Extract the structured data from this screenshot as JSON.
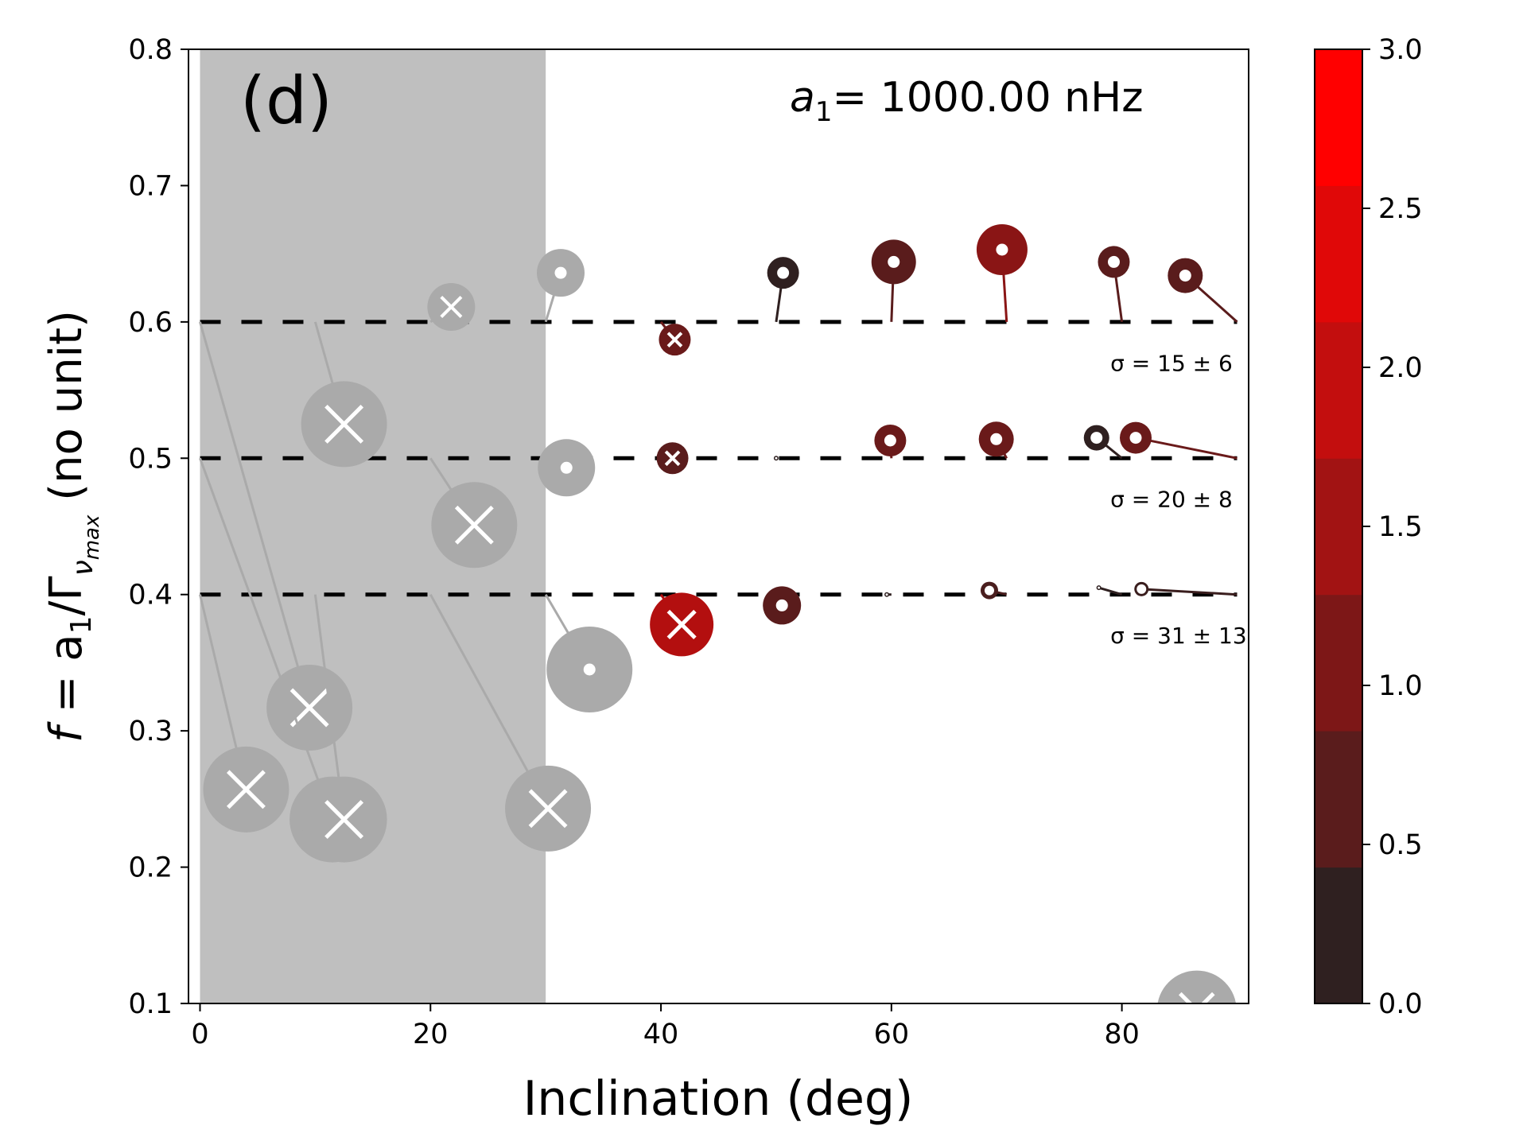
{
  "chart_data": {
    "type": "scatter",
    "panel_label": "(d)",
    "annotation": {
      "prefix": "a",
      "sub": "1",
      "text": "= 1000.00 nHz"
    },
    "xlabel": "Inclination (deg)",
    "ylabel": {
      "a": "f",
      "b": " = a",
      "c": "1",
      "d": "/Γ",
      "e": "ν",
      "f": "max",
      "g": " (no unit)"
    },
    "xlim": [
      -1,
      91
    ],
    "ylim": [
      0.1,
      0.8
    ],
    "xticks": [
      "0",
      "20",
      "40",
      "60",
      "80"
    ],
    "yticks": [
      "0.1",
      "0.2",
      "0.3",
      "0.4",
      "0.5",
      "0.6",
      "0.7",
      "0.8"
    ],
    "shaded_region": {
      "x": [
        0,
        30
      ],
      "color": "#bfbfbf"
    },
    "reference_lines": [
      {
        "y": 0.6,
        "label": "σ = 15 ± 6"
      },
      {
        "y": 0.5,
        "label": "σ = 20 ± 8"
      },
      {
        "y": 0.4,
        "label": "σ = 31 ± 13"
      }
    ],
    "colorbar": {
      "ticks": [
        "0.0",
        "0.5",
        "1.0",
        "1.5",
        "2.0",
        "2.5",
        "3.0"
      ],
      "range": [
        0,
        3
      ],
      "colors": [
        "#2f2020",
        "#5a1c1c",
        "#7d1717",
        "#a21313",
        "#c30e0e",
        "#e00808",
        "#ff0000"
      ]
    },
    "points": [
      {
        "inc_true": 0,
        "f_true": 0.6,
        "inc": 9.5,
        "f": 0.317,
        "size": 2.7,
        "marker": "x",
        "color": "#aaaaaa"
      },
      {
        "inc_true": 0,
        "f_true": 0.5,
        "inc": 11.5,
        "f": 0.235,
        "size": 2.7,
        "marker": "x",
        "color": "#aaaaaa"
      },
      {
        "inc_true": 0,
        "f_true": 0.4,
        "inc": 4,
        "f": 0.257,
        "size": 2.7,
        "marker": "x",
        "color": "#aaaaaa"
      },
      {
        "inc_true": 10,
        "f_true": 0.6,
        "inc": 12.5,
        "f": 0.525,
        "size": 2.7,
        "marker": "x",
        "color": "#aaaaaa"
      },
      {
        "inc_true": 10,
        "f_true": 0.4,
        "inc": 12.5,
        "f": 0.235,
        "size": 2.7,
        "marker": "x",
        "color": "#aaaaaa"
      },
      {
        "inc_true": 20,
        "f_true": 0.6,
        "inc": 21.8,
        "f": 0.611,
        "size": 1.5,
        "marker": "x",
        "color": "#aaaaaa"
      },
      {
        "inc_true": 20,
        "f_true": 0.5,
        "inc": 23.8,
        "f": 0.451,
        "size": 2.7,
        "marker": "x",
        "color": "#aaaaaa"
      },
      {
        "inc_true": 20,
        "f_true": 0.4,
        "inc": 30.2,
        "f": 0.243,
        "size": 2.7,
        "marker": "x",
        "color": "#aaaaaa"
      },
      {
        "inc_true": 30,
        "f_true": 0.6,
        "inc": 31.3,
        "f": 0.636,
        "size": 1.5,
        "marker": "o",
        "color": "#aaaaaa"
      },
      {
        "inc_true": 30,
        "f_true": 0.5,
        "inc": 31.8,
        "f": 0.493,
        "size": 1.8,
        "marker": "o",
        "color": "#aaaaaa"
      },
      {
        "inc_true": 30,
        "f_true": 0.4,
        "inc": 33.8,
        "f": 0.345,
        "size": 2.7,
        "marker": "o",
        "color": "#aaaaaa"
      },
      {
        "inc_true": 40,
        "f_true": 0.6,
        "inc": 41.2,
        "f": 0.587,
        "size": 1.0,
        "marker": "x",
        "color": "#6a1a1a"
      },
      {
        "inc_true": 40,
        "f_true": 0.5,
        "inc": 41.0,
        "f": 0.5,
        "size": 1.0,
        "marker": "x",
        "color": "#5a1c1c"
      },
      {
        "inc_true": 40,
        "f_true": 0.4,
        "inc": 41.8,
        "f": 0.378,
        "size": 2.0,
        "marker": "x",
        "color": "#b30f0f"
      },
      {
        "inc_true": 50,
        "f_true": 0.6,
        "inc": 50.6,
        "f": 0.636,
        "size": 1.0,
        "marker": "o",
        "color": "#2f2020"
      },
      {
        "inc_true": 50,
        "f_true": 0.5,
        "inc": 50.0,
        "f": 0.5,
        "size": 0.15,
        "marker": "o",
        "color": "#2f2020"
      },
      {
        "inc_true": 50,
        "f_true": 0.4,
        "inc": 50.5,
        "f": 0.392,
        "size": 1.2,
        "marker": "o",
        "color": "#5a1c1c"
      },
      {
        "inc_true": 60,
        "f_true": 0.6,
        "inc": 60.2,
        "f": 0.644,
        "size": 1.4,
        "marker": "o",
        "color": "#5a1c1c"
      },
      {
        "inc_true": 60,
        "f_true": 0.5,
        "inc": 59.9,
        "f": 0.513,
        "size": 1.0,
        "marker": "o",
        "color": "#6a1a1a"
      },
      {
        "inc_true": 60,
        "f_true": 0.4,
        "inc": 59.6,
        "f": 0.4,
        "size": 0.15,
        "marker": "o",
        "color": "#2f2020"
      },
      {
        "inc_true": 70,
        "f_true": 0.6,
        "inc": 69.6,
        "f": 0.653,
        "size": 1.6,
        "marker": "o",
        "color": "#8a1515"
      },
      {
        "inc_true": 70,
        "f_true": 0.5,
        "inc": 69.1,
        "f": 0.514,
        "size": 1.1,
        "marker": "o",
        "color": "#6a1a1a"
      },
      {
        "inc_true": 70,
        "f_true": 0.4,
        "inc": 68.5,
        "f": 0.403,
        "size": 0.55,
        "marker": "o",
        "color": "#4a1e1e"
      },
      {
        "inc_true": 80,
        "f_true": 0.6,
        "inc": 79.3,
        "f": 0.644,
        "size": 1.0,
        "marker": "o",
        "color": "#5a1c1c"
      },
      {
        "inc_true": 80,
        "f_true": 0.5,
        "inc": 77.8,
        "f": 0.515,
        "size": 0.8,
        "marker": "o",
        "color": "#2f2020"
      },
      {
        "inc_true": 80,
        "f_true": 0.4,
        "inc": 78.0,
        "f": 0.405,
        "size": 0.15,
        "marker": "o",
        "color": "#2f2020"
      },
      {
        "inc_true": 90,
        "f_true": 0.6,
        "inc": 85.5,
        "f": 0.634,
        "size": 1.1,
        "marker": "o",
        "color": "#5a1c1c"
      },
      {
        "inc_true": 90,
        "f_true": 0.5,
        "inc": 81.2,
        "f": 0.515,
        "size": 1.0,
        "marker": "o",
        "color": "#6a1a1a"
      },
      {
        "inc_true": 90,
        "f_true": 0.4,
        "inc": 81.7,
        "f": 0.404,
        "size": 0.45,
        "marker": "o",
        "color": "#3a1e1e"
      },
      {
        "inc_true": 86.5,
        "f_true": 0.1,
        "inc": 86.5,
        "f": 0.095,
        "size": 2.5,
        "marker": "x",
        "color": "#aaaaaa"
      }
    ]
  }
}
